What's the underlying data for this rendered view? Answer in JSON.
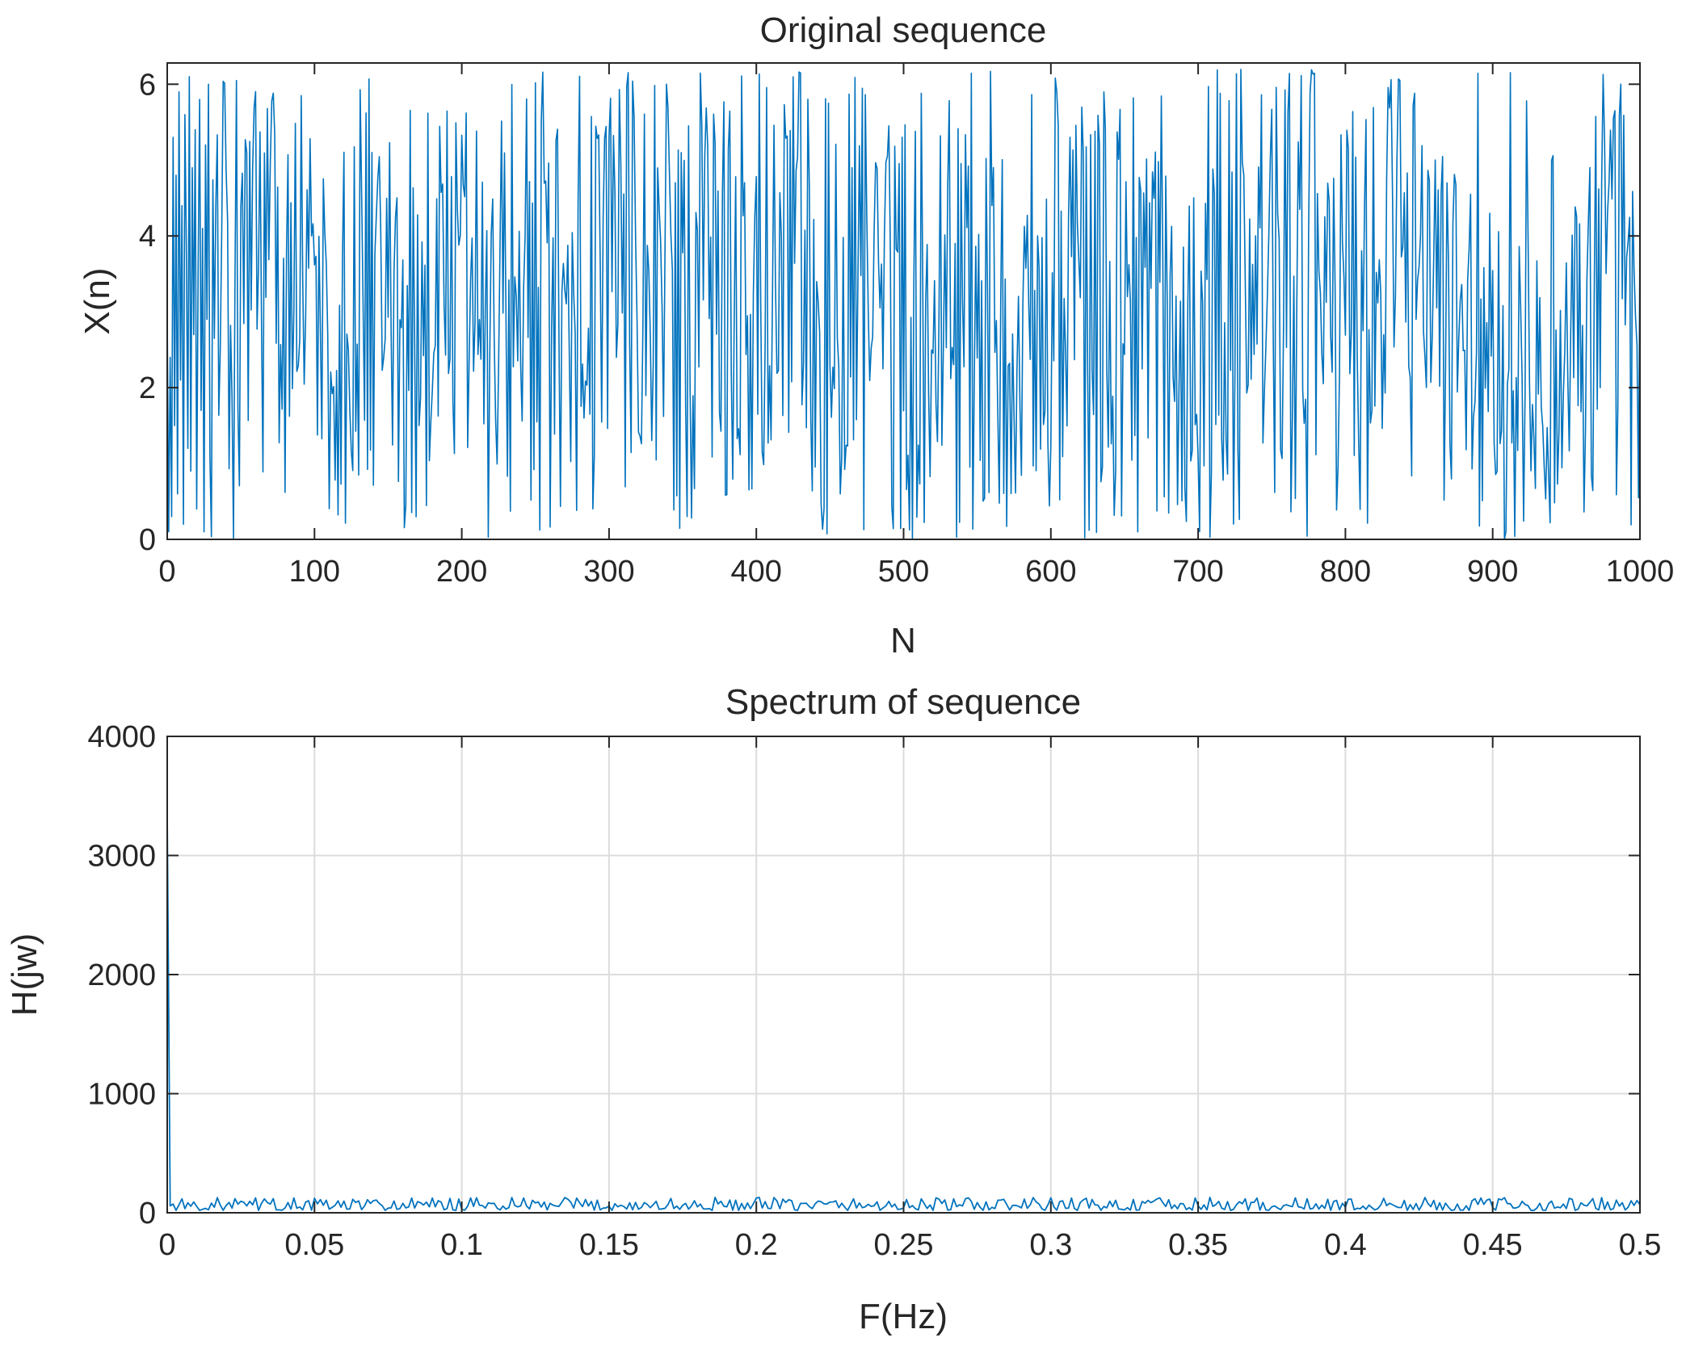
{
  "colors": {
    "series": "#0072BD",
    "axes": "#262626",
    "grid": "#DCDCDC",
    "background": "#FFFFFF"
  },
  "chart_data": [
    {
      "type": "line",
      "title": "Original sequence",
      "xlabel": "N",
      "ylabel": "X(n)",
      "xlim": [
        0,
        1000
      ],
      "ylim": [
        0,
        6.28
      ],
      "xticks": [
        "0",
        "100",
        "200",
        "300",
        "400",
        "500",
        "600",
        "700",
        "800",
        "900",
        "1000"
      ],
      "yticks": [
        "0",
        "2",
        "4",
        "6"
      ],
      "grid": false,
      "series": [
        {
          "x_range": [
            0,
            1000
          ],
          "y_range": [
            0,
            6.28
          ],
          "n_points": 1000,
          "values_sample": [
            3.0,
            0.1,
            2.4,
            0.3,
            5.3,
            1.5,
            4.8,
            0.6,
            5.9,
            2.1,
            4.4,
            0.2,
            5.6,
            3.8,
            1.2,
            6.1,
            0.9,
            4.9,
            2.7,
            5.4,
            0.4,
            3.6,
            5.8,
            1.7,
            4.1,
            0.1,
            5.2,
            2.9,
            6.0,
            1.1
          ]
        }
      ]
    },
    {
      "type": "line",
      "title": "Spectrum of sequence",
      "xlabel": "F(Hz)",
      "ylabel": "H(jw)",
      "xlim": [
        0,
        0.5
      ],
      "ylim": [
        0,
        4000
      ],
      "xticks": [
        "0",
        "0.05",
        "0.1",
        "0.15",
        "0.2",
        "0.25",
        "0.3",
        "0.35",
        "0.4",
        "0.45",
        "0.5"
      ],
      "yticks": [
        "0",
        "1000",
        "2000",
        "3000",
        "4000"
      ],
      "grid": true,
      "series": [
        {
          "peak": {
            "x": 0,
            "y": 3350
          },
          "noise_floor_range": [
            20,
            130
          ],
          "n_points": 500
        }
      ]
    }
  ]
}
